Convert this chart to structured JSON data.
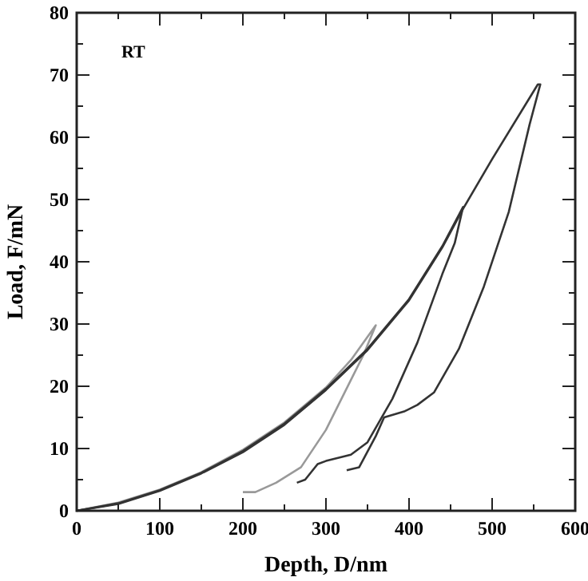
{
  "chart_data": {
    "type": "line",
    "xlabel": "Depth, D/nm",
    "ylabel": "Load, F/mN",
    "annotations": [
      "RT"
    ],
    "xlim": [
      0,
      600
    ],
    "ylim": [
      0,
      80
    ],
    "xticks": [
      0,
      {
        "value": 50,
        "label": null
      },
      100,
      {
        "value": 150,
        "label": null
      },
      200,
      {
        "value": 250,
        "label": null
      },
      300,
      {
        "value": 350,
        "label": null
      },
      400,
      {
        "value": 450,
        "label": null
      },
      500,
      {
        "value": 550,
        "label": null
      },
      600
    ],
    "yticks": [
      0,
      {
        "value": 5,
        "label": null
      },
      10,
      {
        "value": 15,
        "label": null
      },
      20,
      {
        "value": 25,
        "label": null
      },
      30,
      {
        "value": 35,
        "label": null
      },
      40,
      {
        "value": 45,
        "label": null
      },
      50,
      {
        "value": 55,
        "label": null
      },
      60,
      {
        "value": 65,
        "label": null
      },
      70,
      {
        "value": 75,
        "label": null
      },
      80
    ],
    "grid": false,
    "marker": "none",
    "line_style": "solid",
    "series": [
      {
        "color": "#999999",
        "x": [
          0,
          50,
          100,
          150,
          200,
          250,
          300,
          330,
          360,
          345,
          330,
          300,
          270,
          240,
          215,
          200
        ],
        "values": [
          0,
          1.3,
          3.4,
          6.2,
          9.8,
          14.2,
          19.8,
          24.2,
          29.8,
          25,
          21,
          13,
          7,
          4.5,
          3,
          3
        ]
      },
      {
        "color": "#333333",
        "x": [
          0,
          50,
          100,
          150,
          200,
          250,
          300,
          350,
          400,
          440,
          465,
          455,
          440,
          410,
          380,
          350,
          330,
          300,
          290,
          275,
          265
        ],
        "values": [
          0,
          1.2,
          3.3,
          6.1,
          9.6,
          14,
          19.6,
          26,
          34,
          42.5,
          48.8,
          43,
          38,
          27,
          18,
          11,
          9,
          8,
          7.5,
          5,
          4.5
        ]
      },
      {
        "color": "#333333",
        "x": [
          0,
          50,
          100,
          150,
          200,
          250,
          300,
          350,
          400,
          440,
          465,
          500,
          555,
          558,
          545,
          520,
          490,
          460,
          430,
          410,
          395,
          370,
          360,
          340,
          325
        ],
        "values": [
          0,
          1.1,
          3.2,
          6,
          9.4,
          13.8,
          19.4,
          25.8,
          33.8,
          42.3,
          48.5,
          56.5,
          68.5,
          68.5,
          62,
          48,
          36,
          26,
          19,
          17,
          16,
          15,
          12,
          7,
          6.5
        ]
      }
    ]
  }
}
